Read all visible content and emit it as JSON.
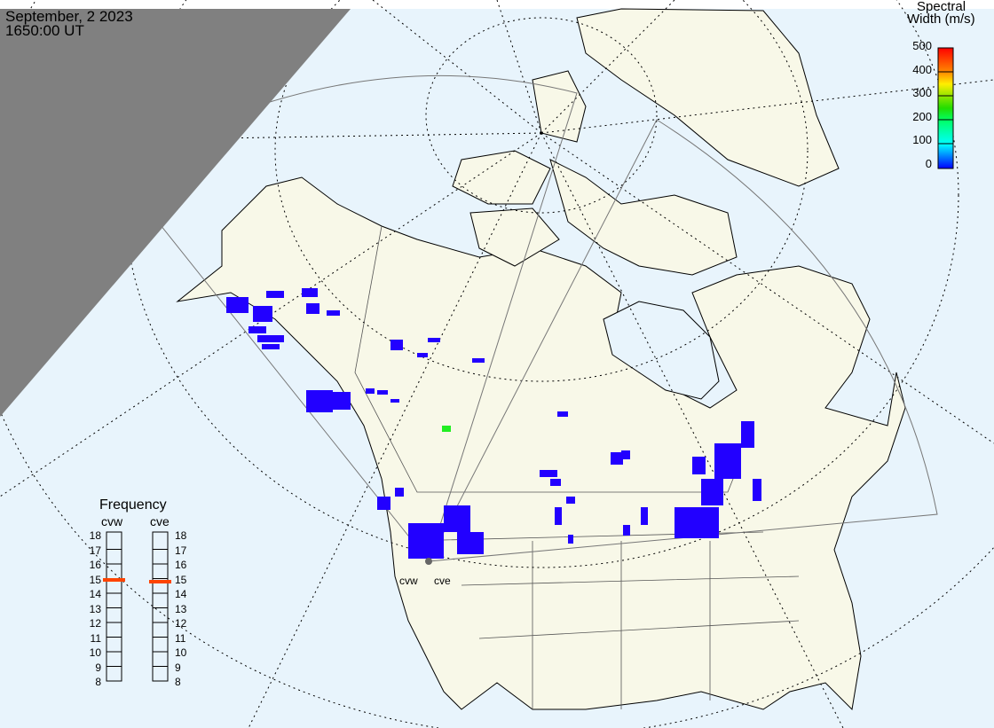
{
  "header": {
    "date": "September, 2 2023",
    "time": "1650:00 UT"
  },
  "colorbar": {
    "title_line1": "Spectral",
    "title_line2": "Width (m/s)",
    "ticks": [
      "500",
      "400",
      "300",
      "200",
      "100",
      "0"
    ],
    "colors": [
      "#ff0000",
      "#ff8800",
      "#ffee00",
      "#22dd00",
      "#00ffcc",
      "#0099ff",
      "#0000ff"
    ]
  },
  "frequency": {
    "title": "Frequency",
    "radars": [
      {
        "name": "cvw",
        "value_mhz": 14.9
      },
      {
        "name": "cve",
        "value_mhz": 14.8
      }
    ],
    "ticks": [
      "18",
      "17",
      "16",
      "15",
      "14",
      "13",
      "12",
      "11",
      "10",
      "9",
      "8"
    ],
    "marker_color": "#ff4400"
  },
  "map": {
    "ocean_color": "#e8f4fc",
    "land_color": "#f8f8e8",
    "night_color": "#808080",
    "echo_color": "#2200ff",
    "radar_labels": [
      "cvw",
      "cve"
    ]
  }
}
